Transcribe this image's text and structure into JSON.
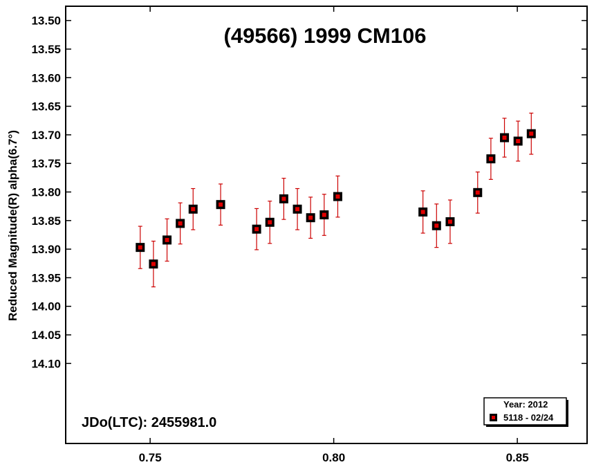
{
  "chart_data": {
    "type": "scatter",
    "title": "(49566) 1999 CM106",
    "xlabel": "",
    "ylabel": "Reduced Magnitude(R) alpha(6.7°)",
    "xlim": [
      0.727,
      0.869
    ],
    "ylim": [
      13.475,
      14.24
    ],
    "y_inverted": true,
    "x_ticks": [
      0.75,
      0.8,
      0.85
    ],
    "x_tick_labels": [
      "0.75",
      "0.80",
      "0.85"
    ],
    "y_ticks": [
      13.5,
      13.55,
      13.6,
      13.65,
      13.7,
      13.75,
      13.8,
      13.85,
      13.9,
      13.95,
      14.0,
      14.05,
      14.1
    ],
    "y_tick_labels": [
      "13.50",
      "13.55",
      "13.60",
      "13.65",
      "13.70",
      "13.75",
      "13.80",
      "13.85",
      "13.90",
      "13.95",
      "14.00",
      "14.05",
      "14.10"
    ],
    "grid": false,
    "annotation": "JDo(LTC): 2455981.0",
    "legend": {
      "placement": "bottom-right",
      "header": "Year: 2012",
      "entries": [
        {
          "label": "5118 - 02/24",
          "marker_color": "#e00000"
        }
      ]
    },
    "marker_color": "#e00000",
    "marker_edge_color": "#000000",
    "errorbar_color": "#cc0000",
    "series": [
      {
        "x": [
          0.7473,
          0.7509,
          0.7546,
          0.7582,
          0.7617,
          0.7692,
          0.779,
          0.7826,
          0.7864,
          0.7901,
          0.7937,
          0.7974,
          0.8011,
          0.8243,
          0.828,
          0.8317,
          0.8392,
          0.8428,
          0.8465,
          0.8502,
          0.8538
        ],
        "y": [
          13.897,
          13.926,
          13.884,
          13.855,
          13.83,
          13.822,
          13.865,
          13.853,
          13.812,
          13.83,
          13.845,
          13.84,
          13.808,
          13.835,
          13.859,
          13.852,
          13.801,
          13.742,
          13.705,
          13.711,
          13.698
        ],
        "err": [
          0.037,
          0.04,
          0.037,
          0.036,
          0.036,
          0.036,
          0.036,
          0.037,
          0.036,
          0.036,
          0.036,
          0.036,
          0.036,
          0.037,
          0.038,
          0.038,
          0.036,
          0.036,
          0.034,
          0.035,
          0.036
        ]
      }
    ]
  }
}
